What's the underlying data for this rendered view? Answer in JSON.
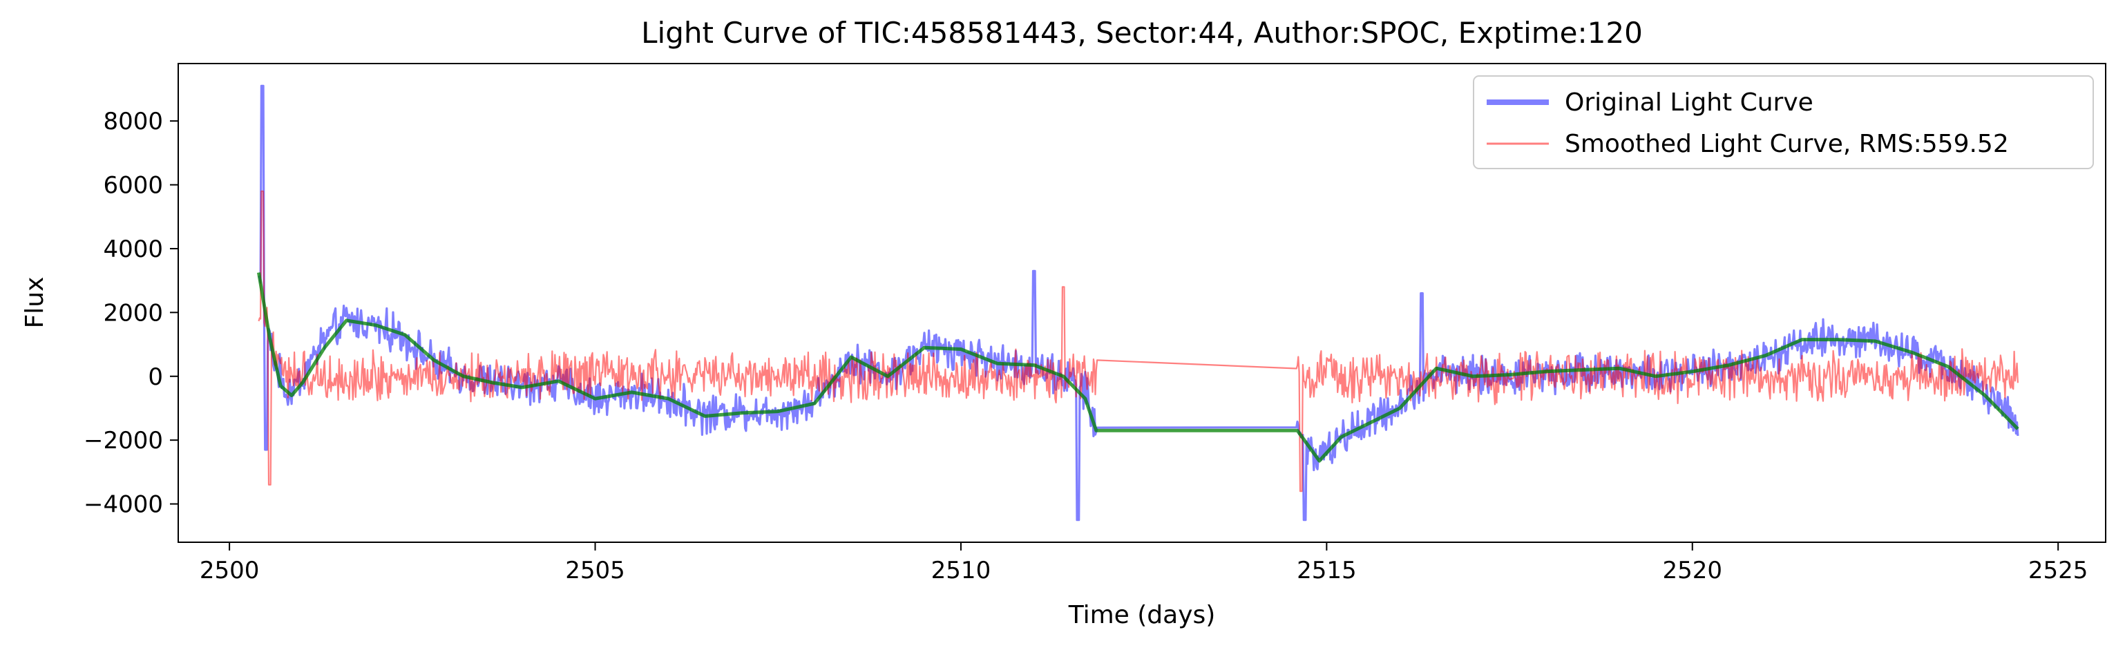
{
  "chart_data": {
    "type": "line",
    "title": "Light Curve of TIC:458581443, Sector:44, Author:SPOC, Exptime:120",
    "xlabel": "Time (days)",
    "ylabel": "Flux",
    "xlim": [
      2499.3,
      2525.65
    ],
    "ylim": [
      -5200,
      9800
    ],
    "xticks": [
      2500,
      2505,
      2510,
      2515,
      2520,
      2525
    ],
    "yticks": [
      -4000,
      -2000,
      0,
      2000,
      4000,
      6000,
      8000
    ],
    "xtick_labels": [
      "2500",
      "2505",
      "2510",
      "2515",
      "2520",
      "2525"
    ],
    "ytick_labels": [
      "−4000",
      "−2000",
      "0",
      "2000",
      "4000",
      "6000",
      "8000"
    ],
    "grid": false,
    "legend_position": "top-right",
    "series": [
      {
        "name": "Original Light Curve",
        "color": "#0000ff",
        "alpha": 0.5,
        "style": "thick",
        "noise_amplitude": 700,
        "spikes": [
          [
            2500.45,
            9100
          ],
          [
            2500.5,
            -2300
          ],
          [
            2511.0,
            3300
          ],
          [
            2511.6,
            -4500
          ],
          [
            2514.7,
            -4500
          ],
          [
            2516.3,
            2600
          ]
        ],
        "envelope": [
          [
            2500.4,
            3200
          ],
          [
            2500.6,
            500
          ],
          [
            2500.8,
            -600
          ],
          [
            2501.0,
            0
          ],
          [
            2501.3,
            1200
          ],
          [
            2501.6,
            1750
          ],
          [
            2502.0,
            1600
          ],
          [
            2502.4,
            1200
          ],
          [
            2502.8,
            400
          ],
          [
            2503.2,
            0
          ],
          [
            2503.6,
            -200
          ],
          [
            2504.0,
            -300
          ],
          [
            2504.5,
            -200
          ],
          [
            2505.0,
            -700
          ],
          [
            2505.5,
            -500
          ],
          [
            2506.0,
            -700
          ],
          [
            2506.5,
            -1200
          ],
          [
            2507.0,
            -1100
          ],
          [
            2507.5,
            -1100
          ],
          [
            2508.0,
            -800
          ],
          [
            2508.5,
            600
          ],
          [
            2509.0,
            0
          ],
          [
            2509.5,
            900
          ],
          [
            2510.0,
            800
          ],
          [
            2510.5,
            400
          ],
          [
            2511.0,
            300
          ],
          [
            2511.4,
            0
          ],
          [
            2511.7,
            -400
          ],
          [
            2511.85,
            -1700
          ],
          [
            2514.6,
            -1700
          ],
          [
            2514.9,
            -2600
          ],
          [
            2515.2,
            -1900
          ],
          [
            2515.6,
            -1400
          ],
          [
            2516.0,
            -900
          ],
          [
            2516.5,
            200
          ],
          [
            2517.0,
            0
          ],
          [
            2517.5,
            0
          ],
          [
            2518.0,
            100
          ],
          [
            2518.5,
            200
          ],
          [
            2519.0,
            200
          ],
          [
            2519.5,
            0
          ],
          [
            2520.0,
            100
          ],
          [
            2520.5,
            300
          ],
          [
            2521.0,
            600
          ],
          [
            2521.5,
            1100
          ],
          [
            2522.0,
            1150
          ],
          [
            2522.5,
            1100
          ],
          [
            2523.0,
            700
          ],
          [
            2523.5,
            300
          ],
          [
            2524.0,
            -500
          ],
          [
            2524.45,
            -1600
          ]
        ]
      },
      {
        "name": "Smoothed Light Curve, RMS:559.52",
        "color": "#ff0000",
        "alpha": 0.5,
        "style": "thin",
        "noise_amplitude": 900,
        "spikes": [
          [
            2500.45,
            5800
          ],
          [
            2500.55,
            -3400
          ],
          [
            2511.4,
            2800
          ],
          [
            2514.65,
            -3600
          ]
        ],
        "envelope": [
          [
            2500.4,
            2000
          ],
          [
            2500.8,
            0
          ],
          [
            2511.85,
            0
          ],
          [
            2511.9,
            500
          ],
          [
            2514.6,
            150
          ],
          [
            2514.7,
            0
          ],
          [
            2524.45,
            0
          ]
        ]
      },
      {
        "name": "",
        "color": "#008000",
        "alpha": 0.75,
        "style": "trend",
        "noise_amplitude": 0,
        "spikes": [],
        "envelope": [
          [
            2500.4,
            3250
          ],
          [
            2500.55,
            1200
          ],
          [
            2500.7,
            -300
          ],
          [
            2500.85,
            -600
          ],
          [
            2501.0,
            -200
          ],
          [
            2501.3,
            900
          ],
          [
            2501.6,
            1750
          ],
          [
            2502.0,
            1600
          ],
          [
            2502.4,
            1300
          ],
          [
            2502.8,
            500
          ],
          [
            2503.2,
            0
          ],
          [
            2503.6,
            -200
          ],
          [
            2504.0,
            -350
          ],
          [
            2504.5,
            -150
          ],
          [
            2505.0,
            -700
          ],
          [
            2505.5,
            -500
          ],
          [
            2506.0,
            -700
          ],
          [
            2506.5,
            -1250
          ],
          [
            2507.0,
            -1150
          ],
          [
            2507.5,
            -1100
          ],
          [
            2508.0,
            -850
          ],
          [
            2508.5,
            600
          ],
          [
            2509.0,
            0
          ],
          [
            2509.5,
            900
          ],
          [
            2510.0,
            850
          ],
          [
            2510.5,
            400
          ],
          [
            2511.0,
            350
          ],
          [
            2511.4,
            0
          ],
          [
            2511.7,
            -700
          ],
          [
            2511.85,
            -1700
          ],
          [
            2514.6,
            -1700
          ],
          [
            2514.9,
            -2650
          ],
          [
            2515.2,
            -1900
          ],
          [
            2515.6,
            -1450
          ],
          [
            2516.0,
            -1000
          ],
          [
            2516.5,
            250
          ],
          [
            2517.0,
            0
          ],
          [
            2517.5,
            50
          ],
          [
            2518.0,
            150
          ],
          [
            2518.5,
            200
          ],
          [
            2519.0,
            250
          ],
          [
            2519.5,
            0
          ],
          [
            2520.0,
            150
          ],
          [
            2520.5,
            350
          ],
          [
            2521.0,
            650
          ],
          [
            2521.5,
            1150
          ],
          [
            2522.0,
            1150
          ],
          [
            2522.5,
            1100
          ],
          [
            2523.0,
            750
          ],
          [
            2523.5,
            300
          ],
          [
            2524.0,
            -600
          ],
          [
            2524.45,
            -1650
          ]
        ]
      }
    ]
  }
}
